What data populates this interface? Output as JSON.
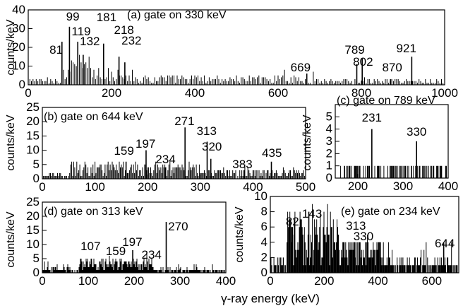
{
  "figure": {
    "x_axis_title": "γ-ray energy (keV)"
  },
  "chart_data": [
    {
      "id": "a",
      "type": "bar",
      "title": "(a) gate on 330 keV",
      "ylabel": "counts/keV",
      "xlabel": "",
      "xlim": [
        0,
        1000
      ],
      "ylim": [
        0,
        40
      ],
      "xticks": [
        0,
        200,
        400,
        600,
        800,
        1000
      ],
      "yticks": [
        0,
        10,
        20,
        30,
        40
      ],
      "peaks": [
        {
          "label": "81",
          "energy": 81,
          "counts": 23
        },
        {
          "label": "99",
          "energy": 99,
          "counts": 31
        },
        {
          "label": "119",
          "energy": 119,
          "counts": 23
        },
        {
          "label": "132",
          "energy": 132,
          "counts": 16
        },
        {
          "label": "181",
          "energy": 181,
          "counts": 22
        },
        {
          "label": "218",
          "energy": 218,
          "counts": 15
        },
        {
          "label": "232",
          "energy": 232,
          "counts": 12
        },
        {
          "label": "669",
          "energy": 669,
          "counts": 6
        },
        {
          "label": "789",
          "energy": 789,
          "counts": 11
        },
        {
          "label": "802",
          "energy": 802,
          "counts": 14
        },
        {
          "label": "870",
          "energy": 870,
          "counts": 3
        },
        {
          "label": "921",
          "energy": 921,
          "counts": 15
        }
      ]
    },
    {
      "id": "b",
      "type": "bar",
      "title": "(b) gate on 644 keV",
      "ylabel": "counts/keV",
      "xlabel": "",
      "xlim": [
        0,
        500
      ],
      "ylim": [
        0,
        25
      ],
      "xticks": [
        0,
        100,
        200,
        300,
        400,
        500
      ],
      "yticks": [
        0,
        5,
        10,
        15,
        20,
        25
      ],
      "peaks": [
        {
          "label": "159",
          "energy": 159,
          "counts": 6
        },
        {
          "label": "197",
          "energy": 197,
          "counts": 10
        },
        {
          "label": "234",
          "energy": 234,
          "counts": 4
        },
        {
          "label": "271",
          "energy": 271,
          "counts": 18
        },
        {
          "label": "313",
          "energy": 313,
          "counts": 13
        },
        {
          "label": "320",
          "energy": 320,
          "counts": 7
        },
        {
          "label": "383",
          "energy": 383,
          "counts": 3
        },
        {
          "label": "435",
          "energy": 435,
          "counts": 6
        }
      ]
    },
    {
      "id": "c",
      "type": "bar",
      "title": "(c) gate on 789 keV",
      "ylabel": "counts/keV",
      "xlabel": "",
      "xlim": [
        150,
        400
      ],
      "ylim": [
        0,
        6
      ],
      "xticks": [
        200,
        300,
        400
      ],
      "yticks": [
        0,
        1,
        2,
        3,
        4,
        5
      ],
      "peaks": [
        {
          "label": "231",
          "energy": 231,
          "counts": 4
        },
        {
          "label": "330",
          "energy": 330,
          "counts": 3
        }
      ]
    },
    {
      "id": "d",
      "type": "bar",
      "title": "(d) gate on 313 keV",
      "ylabel": "counts/keV",
      "xlabel": "",
      "xlim": [
        0,
        400
      ],
      "ylim": [
        0,
        25
      ],
      "xticks": [
        0,
        100,
        200,
        300,
        400
      ],
      "yticks": [
        0,
        5,
        10,
        15,
        20,
        25
      ],
      "peaks": [
        {
          "label": "107",
          "energy": 107,
          "counts": 5
        },
        {
          "label": "159",
          "energy": 159,
          "counts": 4
        },
        {
          "label": "197",
          "energy": 197,
          "counts": 8
        },
        {
          "label": "234",
          "energy": 234,
          "counts": 3
        },
        {
          "label": "270",
          "energy": 270,
          "counts": 18
        }
      ]
    },
    {
      "id": "e",
      "type": "bar",
      "title": "(e) gate on 234 keV",
      "ylabel": "counts/keV",
      "xlabel": "",
      "xlim": [
        0,
        700
      ],
      "ylim": [
        0,
        10
      ],
      "xticks": [
        0,
        200,
        400,
        600
      ],
      "yticks": [
        0,
        2,
        4,
        6,
        8,
        10
      ],
      "peaks": [
        {
          "label": "82",
          "energy": 82,
          "counts": 6
        },
        {
          "label": "143",
          "energy": 143,
          "counts": 8
        },
        {
          "label": "313",
          "energy": 313,
          "counts": 4
        },
        {
          "label": "330",
          "energy": 330,
          "counts": 3
        },
        {
          "label": "644",
          "energy": 644,
          "counts": 4
        }
      ]
    }
  ]
}
